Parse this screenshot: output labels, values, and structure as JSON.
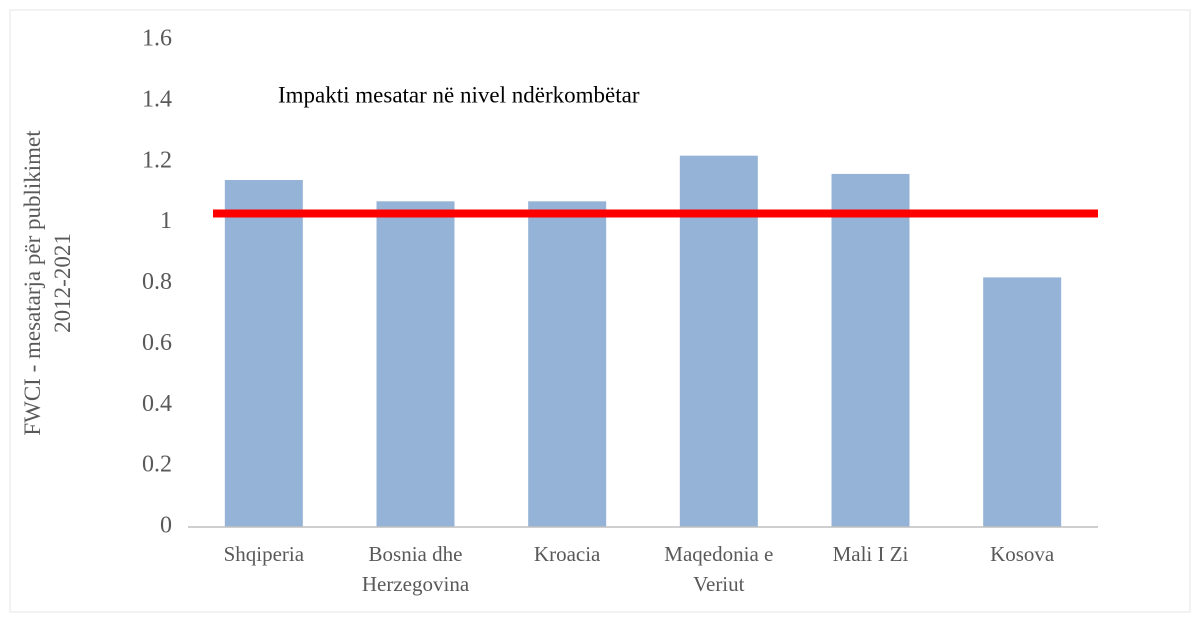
{
  "chart_data": {
    "type": "bar",
    "ylabel": "FWCI - mesatarja për publikimet\n2012-2021",
    "annotation": "Impakti mesatar në nivel ndërkombëtar",
    "categories": [
      "Shqiperia",
      "Bosnia dhe\nHerzegovina",
      "Kroacia",
      "Maqedonia e\nVeriut",
      "Mali I Zi",
      "Kosova"
    ],
    "values": [
      1.14,
      1.07,
      1.07,
      1.22,
      1.16,
      0.82
    ],
    "color": "#95b3d7",
    "reference_line": {
      "value": 1.03,
      "color": "#ff0000"
    },
    "ylim": [
      0,
      1.6
    ],
    "yticks": [
      0,
      0.2,
      0.4,
      0.6,
      0.8,
      1,
      1.2,
      1.4,
      1.6
    ],
    "grid": false
  }
}
